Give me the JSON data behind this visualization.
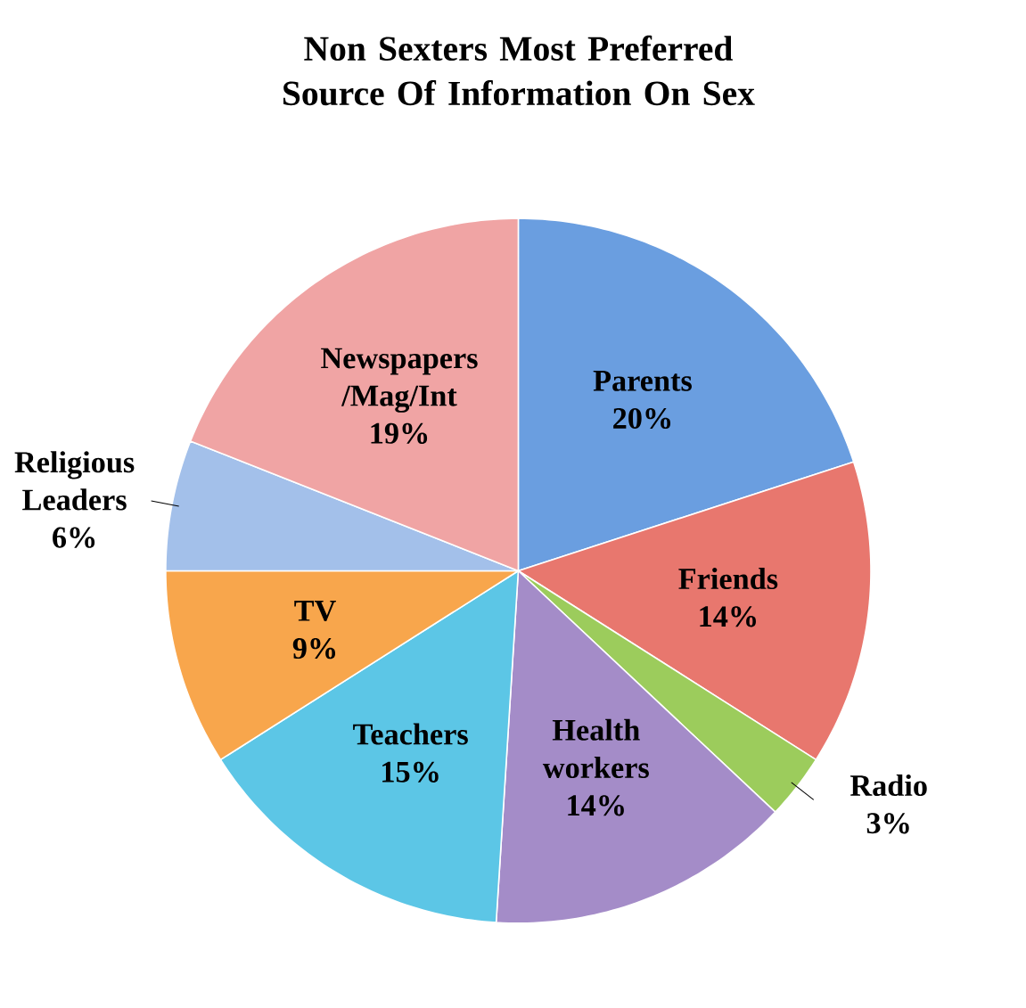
{
  "chart_data": {
    "type": "pie",
    "title": "Non Sexters Most Preferred Source Of Information On Sex",
    "categories": [
      "Parents",
      "Friends",
      "Radio",
      "Health workers",
      "Teachers",
      "TV",
      "Religious Leaders",
      "Newspapers /Mag/Int"
    ],
    "values": [
      20,
      14,
      3,
      14,
      15,
      9,
      6,
      19
    ],
    "value_labels": [
      "20%",
      "14%",
      "3%",
      "14%",
      "15%",
      "9%",
      "6%",
      "19%"
    ],
    "colors": [
      "#6a9ee0",
      "#e8776e",
      "#9ccc5c",
      "#a48cc8",
      "#5cc6e6",
      "#f8a64c",
      "#a3c0ea",
      "#f0a4a4"
    ],
    "legend": false
  }
}
